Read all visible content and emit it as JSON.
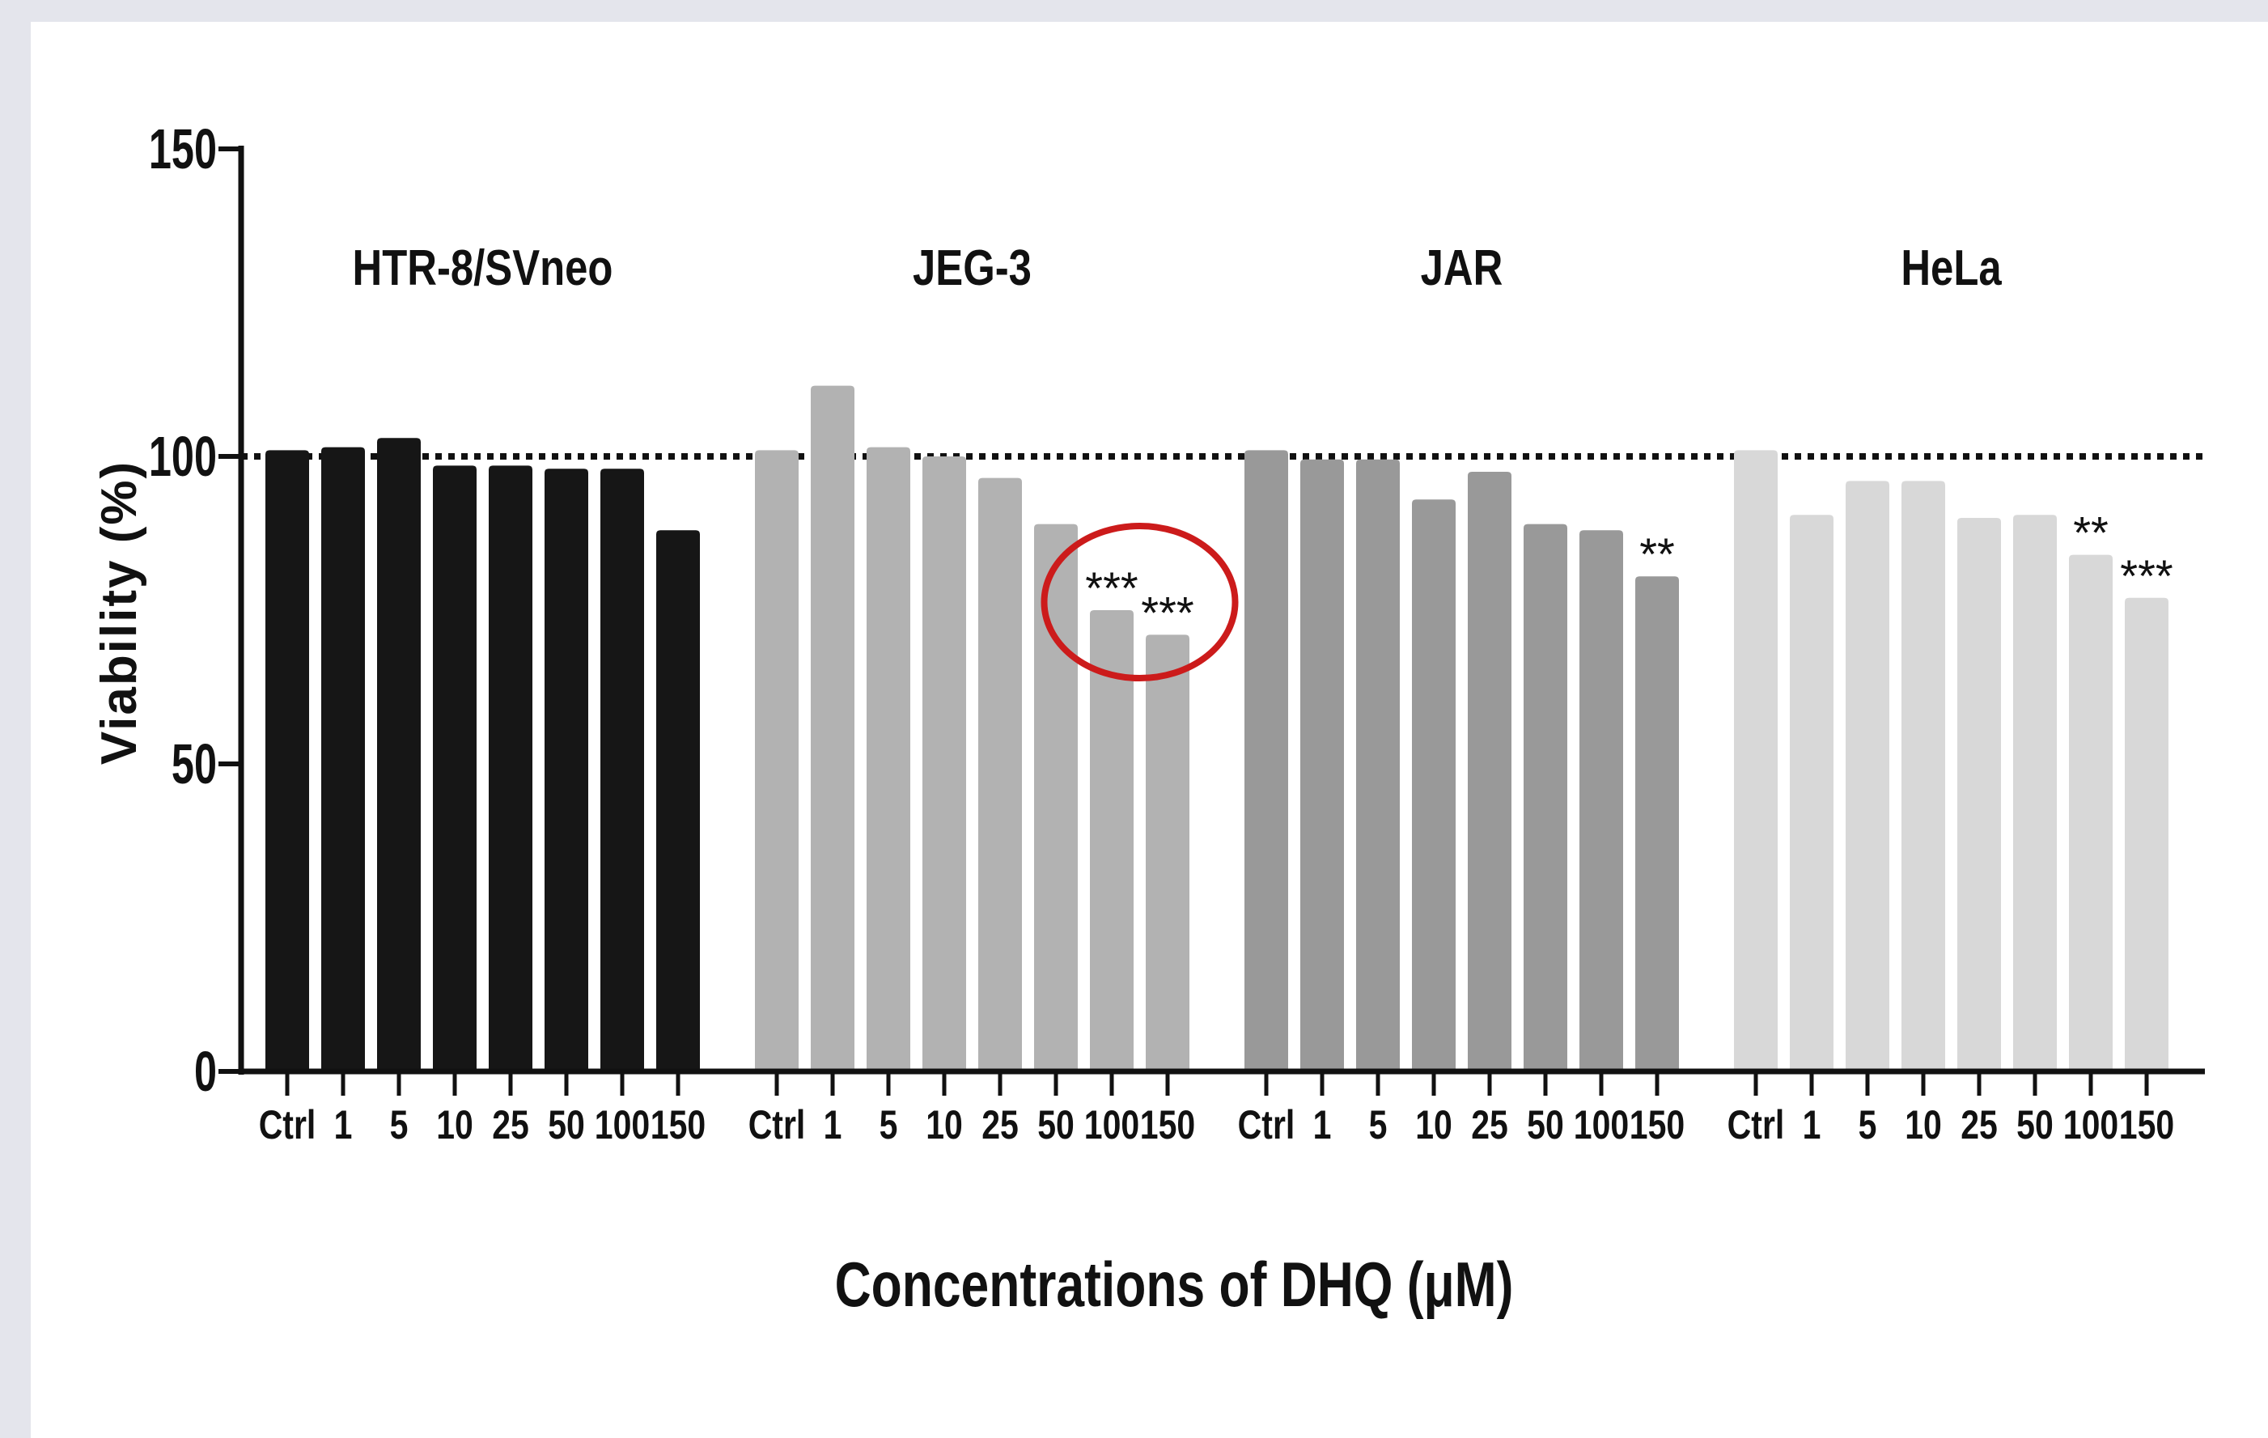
{
  "chart_data": {
    "type": "bar",
    "xlabel": "Concentrations of DHQ (μM)",
    "ylabel": "Viability (%)",
    "ylim": [
      0,
      150
    ],
    "yticks": [
      0,
      50,
      100,
      150
    ],
    "reference_line": 100,
    "categories": [
      "Ctrl",
      "1",
      "5",
      "10",
      "25",
      "50",
      "100",
      "150"
    ],
    "groups": [
      {
        "name": "HTR-8/SVneo",
        "color": "#161616",
        "values": [
          101,
          101.5,
          103,
          98.5,
          98.5,
          98,
          98,
          88
        ],
        "significance": [
          "",
          "",
          "",
          "",
          "",
          "",
          "",
          ""
        ]
      },
      {
        "name": "JEG-3",
        "color": "#b2b2b2",
        "values": [
          101,
          111.5,
          101.5,
          100,
          96.5,
          89,
          75,
          71
        ],
        "significance": [
          "",
          "",
          "",
          "",
          "",
          "",
          "***",
          "***"
        ]
      },
      {
        "name": "JAR",
        "color": "#999999",
        "values": [
          101,
          99.5,
          99.5,
          93,
          97.5,
          89,
          88,
          80.5
        ],
        "significance": [
          "",
          "",
          "",
          "",
          "",
          "",
          "",
          "**"
        ]
      },
      {
        "name": "HeLa",
        "color": "#d8d8d8",
        "values": [
          101,
          90.5,
          96,
          96,
          90,
          90.5,
          84,
          77
        ],
        "significance": [
          "",
          "",
          "",
          "",
          "",
          "",
          "**",
          "***"
        ]
      }
    ],
    "annotation": {
      "type": "circle",
      "color": "#cc1b1b",
      "group": "JEG-3",
      "categories": [
        "100",
        "150"
      ]
    }
  }
}
